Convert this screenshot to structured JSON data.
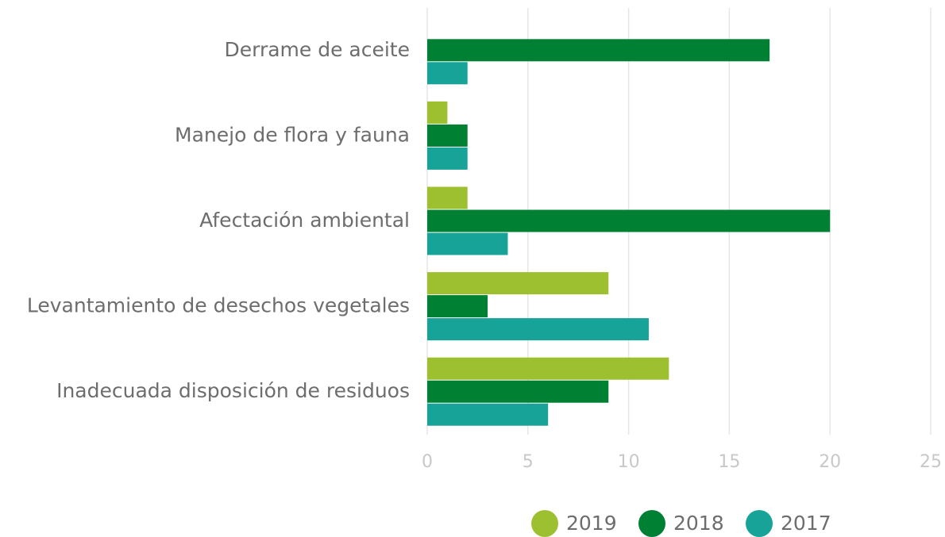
{
  "chart_data": {
    "type": "hbar",
    "categories": [
      "Derrame de aceite",
      "Manejo de flora y fauna",
      "Afectación ambiental",
      "Levantamiento de desechos vegetales",
      "Inadecuada disposición de residuos"
    ],
    "series": [
      {
        "name": "2019",
        "color": "#9dc030",
        "values": [
          0,
          1,
          2,
          9,
          12
        ]
      },
      {
        "name": "2018",
        "color": "#008033",
        "values": [
          17,
          2,
          20,
          3,
          9
        ]
      },
      {
        "name": "2017",
        "color": "#17a398",
        "values": [
          2,
          2,
          4,
          11,
          6
        ]
      }
    ],
    "xlim": [
      0,
      25
    ],
    "xticks": [
      0,
      5,
      10,
      15,
      20,
      25
    ],
    "grid": true
  }
}
